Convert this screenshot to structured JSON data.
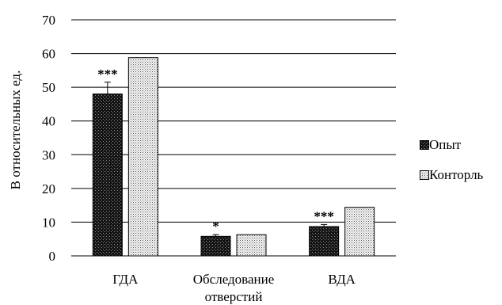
{
  "chart_data": {
    "type": "bar",
    "categories": [
      "ГДА",
      "Обследование отверстий",
      "ВДА"
    ],
    "category_lines": [
      [
        "ГДА"
      ],
      [
        "Обследование",
        "отверстий"
      ],
      [
        "ВДА"
      ]
    ],
    "series": [
      {
        "name": "Опыт",
        "values": [
          48,
          5.8,
          8.7
        ],
        "errors": [
          3.5,
          0.5,
          0.6
        ],
        "marks": [
          "***",
          "*",
          "***"
        ],
        "pattern": "dark"
      },
      {
        "name": "Конторль",
        "values": [
          58.8,
          6.3,
          14.4
        ],
        "pattern": "light"
      }
    ],
    "ylabel": "В относительных ед.",
    "ylim": [
      0,
      70
    ],
    "yticks": [
      0,
      10,
      20,
      30,
      40,
      50,
      60,
      70
    ],
    "grid": true,
    "legend_position": "right"
  }
}
